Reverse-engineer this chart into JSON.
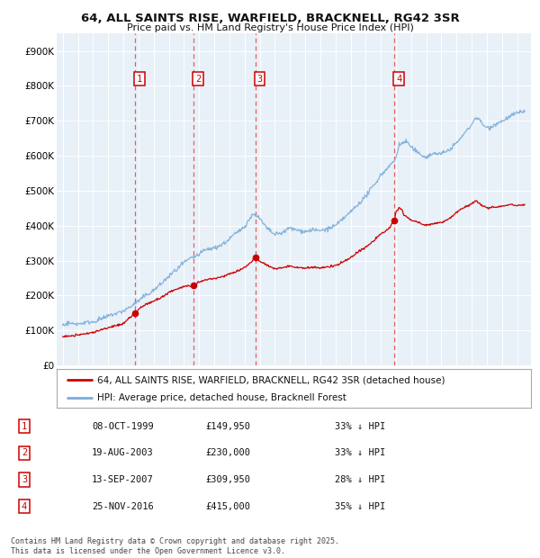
{
  "title": "64, ALL SAINTS RISE, WARFIELD, BRACKNELL, RG42 3SR",
  "subtitle": "Price paid vs. HM Land Registry's House Price Index (HPI)",
  "background_color": "#ffffff",
  "plot_background": "#e8f0f8",
  "grid_color": "#ffffff",
  "ylim": [
    0,
    950000
  ],
  "yticks": [
    0,
    100000,
    200000,
    300000,
    400000,
    500000,
    600000,
    700000,
    800000,
    900000
  ],
  "ytick_labels": [
    "£0",
    "£100K",
    "£200K",
    "£300K",
    "£400K",
    "£500K",
    "£600K",
    "£700K",
    "£800K",
    "£900K"
  ],
  "sale_year_floats": [
    1999.771,
    2003.636,
    2007.704,
    2016.899
  ],
  "sale_prices": [
    149950,
    230000,
    309950,
    415000
  ],
  "sale_labels": [
    "1",
    "2",
    "3",
    "4"
  ],
  "sale_label_info": [
    {
      "num": "1",
      "date": "08-OCT-1999",
      "price": "£149,950",
      "pct": "33% ↓ HPI"
    },
    {
      "num": "2",
      "date": "19-AUG-2003",
      "price": "£230,000",
      "pct": "33% ↓ HPI"
    },
    {
      "num": "3",
      "date": "13-SEP-2007",
      "price": "£309,950",
      "pct": "28% ↓ HPI"
    },
    {
      "num": "4",
      "date": "25-NOV-2016",
      "price": "£415,000",
      "pct": "35% ↓ HPI"
    }
  ],
  "vline_color": "#dd2222",
  "red_line_color": "#cc0000",
  "blue_line_color": "#7aadda",
  "legend_label_red": "64, ALL SAINTS RISE, WARFIELD, BRACKNELL, RG42 3SR (detached house)",
  "legend_label_blue": "HPI: Average price, detached house, Bracknell Forest",
  "footer": "Contains HM Land Registry data © Crown copyright and database right 2025.\nThis data is licensed under the Open Government Licence v3.0.",
  "hpi_keypoints": [
    [
      1995.0,
      115000
    ],
    [
      1996.0,
      120000
    ],
    [
      1997.0,
      130000
    ],
    [
      1998.0,
      145000
    ],
    [
      1999.0,
      160000
    ],
    [
      2000.0,
      190000
    ],
    [
      2001.0,
      220000
    ],
    [
      2002.0,
      260000
    ],
    [
      2003.0,
      295000
    ],
    [
      2003.5,
      310000
    ],
    [
      2004.0,
      320000
    ],
    [
      2004.5,
      330000
    ],
    [
      2005.0,
      335000
    ],
    [
      2005.5,
      345000
    ],
    [
      2006.0,
      360000
    ],
    [
      2006.5,
      380000
    ],
    [
      2007.0,
      400000
    ],
    [
      2007.5,
      430000
    ],
    [
      2007.7,
      435000
    ],
    [
      2008.0,
      420000
    ],
    [
      2008.5,
      390000
    ],
    [
      2009.0,
      370000
    ],
    [
      2009.5,
      375000
    ],
    [
      2010.0,
      390000
    ],
    [
      2010.5,
      385000
    ],
    [
      2011.0,
      380000
    ],
    [
      2011.5,
      382000
    ],
    [
      2012.0,
      380000
    ],
    [
      2012.5,
      385000
    ],
    [
      2013.0,
      395000
    ],
    [
      2013.5,
      410000
    ],
    [
      2014.0,
      430000
    ],
    [
      2014.5,
      455000
    ],
    [
      2015.0,
      480000
    ],
    [
      2015.5,
      510000
    ],
    [
      2016.0,
      540000
    ],
    [
      2016.5,
      565000
    ],
    [
      2016.9,
      580000
    ],
    [
      2017.0,
      590000
    ],
    [
      2017.2,
      630000
    ],
    [
      2017.5,
      635000
    ],
    [
      2017.7,
      640000
    ],
    [
      2018.0,
      625000
    ],
    [
      2018.5,
      610000
    ],
    [
      2019.0,
      600000
    ],
    [
      2019.5,
      610000
    ],
    [
      2020.0,
      610000
    ],
    [
      2020.5,
      620000
    ],
    [
      2021.0,
      640000
    ],
    [
      2021.5,
      665000
    ],
    [
      2022.0,
      690000
    ],
    [
      2022.3,
      710000
    ],
    [
      2022.5,
      700000
    ],
    [
      2022.7,
      690000
    ],
    [
      2023.0,
      680000
    ],
    [
      2023.5,
      690000
    ],
    [
      2024.0,
      700000
    ],
    [
      2024.5,
      715000
    ],
    [
      2025.0,
      725000
    ],
    [
      2025.5,
      730000
    ]
  ],
  "red_keypoints": [
    [
      1995.0,
      88000
    ],
    [
      1996.0,
      91000
    ],
    [
      1997.0,
      98000
    ],
    [
      1998.0,
      110000
    ],
    [
      1999.0,
      122000
    ],
    [
      1999.771,
      149950
    ],
    [
      1999.9,
      155000
    ],
    [
      2000.0,
      162000
    ],
    [
      2000.5,
      175000
    ],
    [
      2001.0,
      185000
    ],
    [
      2001.5,
      195000
    ],
    [
      2002.0,
      210000
    ],
    [
      2002.5,
      220000
    ],
    [
      2003.0,
      228000
    ],
    [
      2003.636,
      230000
    ],
    [
      2003.8,
      235000
    ],
    [
      2004.0,
      240000
    ],
    [
      2004.5,
      248000
    ],
    [
      2005.0,
      250000
    ],
    [
      2005.5,
      255000
    ],
    [
      2006.0,
      262000
    ],
    [
      2006.5,
      270000
    ],
    [
      2007.0,
      280000
    ],
    [
      2007.5,
      298000
    ],
    [
      2007.704,
      309950
    ],
    [
      2007.8,
      308000
    ],
    [
      2008.0,
      298000
    ],
    [
      2008.5,
      285000
    ],
    [
      2009.0,
      275000
    ],
    [
      2009.5,
      278000
    ],
    [
      2010.0,
      283000
    ],
    [
      2010.5,
      278000
    ],
    [
      2011.0,
      275000
    ],
    [
      2011.5,
      278000
    ],
    [
      2012.0,
      278000
    ],
    [
      2012.5,
      280000
    ],
    [
      2013.0,
      285000
    ],
    [
      2013.5,
      295000
    ],
    [
      2014.0,
      308000
    ],
    [
      2014.5,
      325000
    ],
    [
      2015.0,
      338000
    ],
    [
      2015.5,
      355000
    ],
    [
      2016.0,
      375000
    ],
    [
      2016.5,
      390000
    ],
    [
      2016.899,
      415000
    ],
    [
      2017.0,
      440000
    ],
    [
      2017.2,
      450000
    ],
    [
      2017.4,
      445000
    ],
    [
      2017.5,
      430000
    ],
    [
      2018.0,
      415000
    ],
    [
      2018.5,
      408000
    ],
    [
      2019.0,
      400000
    ],
    [
      2019.5,
      405000
    ],
    [
      2020.0,
      408000
    ],
    [
      2020.5,
      418000
    ],
    [
      2021.0,
      435000
    ],
    [
      2021.5,
      450000
    ],
    [
      2022.0,
      462000
    ],
    [
      2022.3,
      470000
    ],
    [
      2022.5,
      462000
    ],
    [
      2022.7,
      455000
    ],
    [
      2023.0,
      450000
    ],
    [
      2023.5,
      452000
    ],
    [
      2024.0,
      455000
    ],
    [
      2024.5,
      460000
    ],
    [
      2025.0,
      458000
    ],
    [
      2025.5,
      460000
    ]
  ]
}
